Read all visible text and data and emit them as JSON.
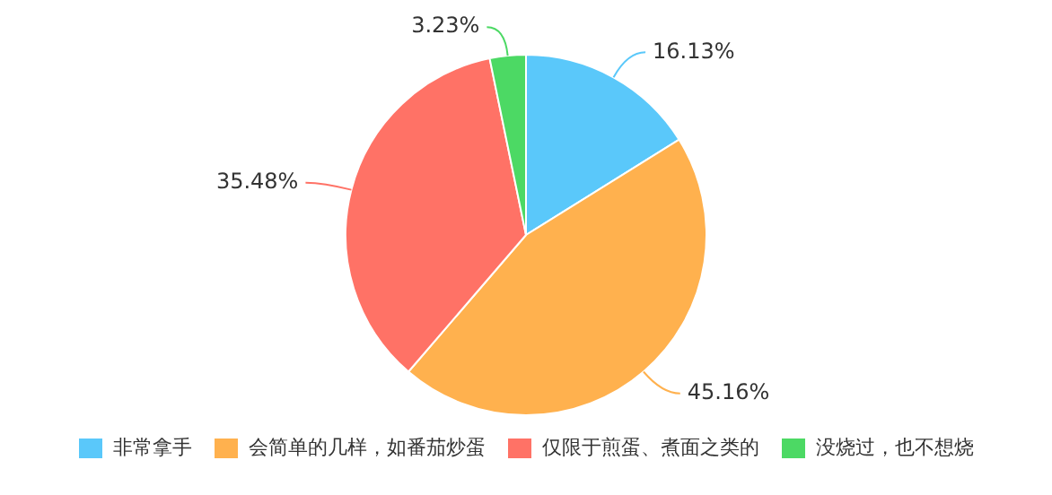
{
  "chart_data": {
    "type": "pie",
    "categories": [
      "非常拿手",
      "会简单的几样，如番茄炒蛋",
      "仅限于煎蛋、煮面之类的",
      "没烧过，也不想烧"
    ],
    "values": [
      16.13,
      45.16,
      35.48,
      3.23
    ],
    "colors": [
      "#5ac8fa",
      "#ffb14e",
      "#ff7266",
      "#4cd964"
    ],
    "value_labels": [
      "16.13%",
      "45.16%",
      "35.48%",
      "3.23%"
    ],
    "legend": "bottom"
  }
}
